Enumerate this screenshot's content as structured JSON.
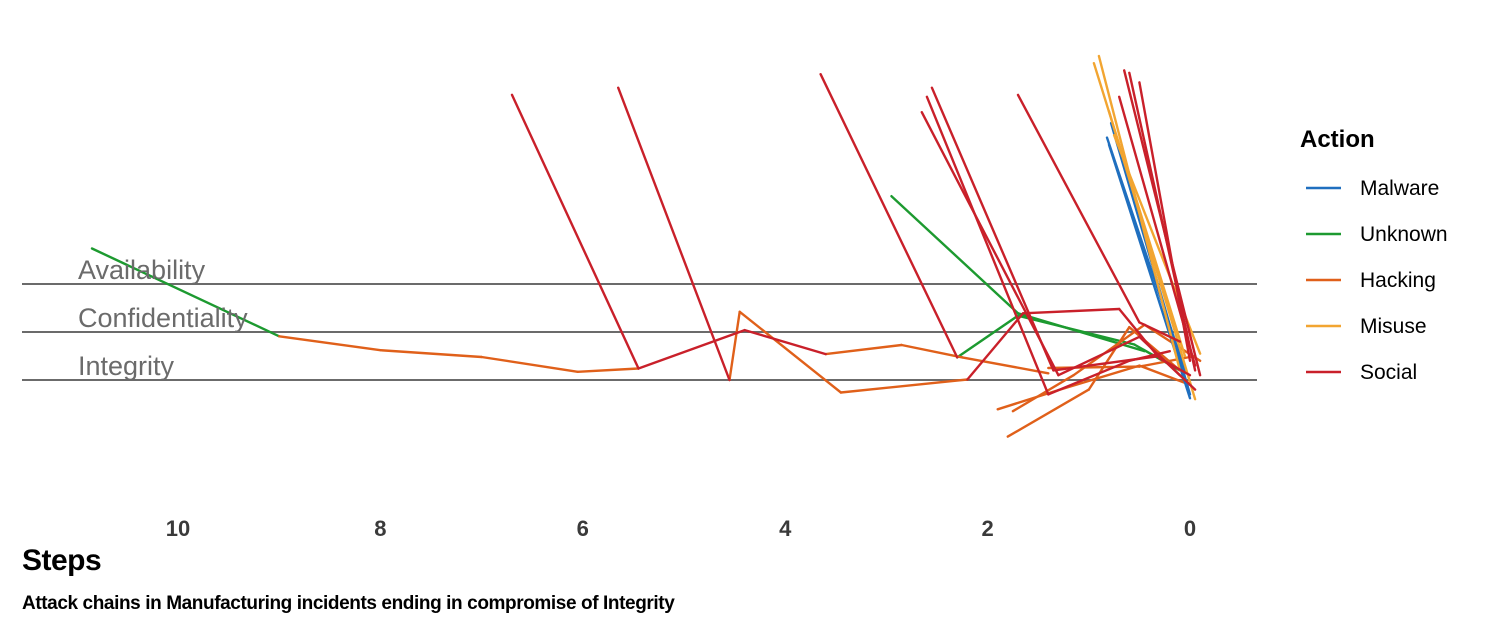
{
  "chart_data": {
    "type": "line",
    "xlabel": "Steps",
    "caption": "Attack chains in Manufacturing incidents ending in compromise of Integrity",
    "x_ticks": [
      10,
      8,
      6,
      4,
      2,
      0
    ],
    "xlim": [
      11.6,
      -0.65
    ],
    "x_reversed": true,
    "attributes": [
      "Availability",
      "Confidentiality",
      "Integrity"
    ],
    "legend": {
      "title": "Action",
      "position": "right",
      "entries": [
        {
          "name": "Malware",
          "color": "#1f6fbf"
        },
        {
          "name": "Unknown",
          "color": "#1d9a30"
        },
        {
          "name": "Hacking",
          "color": "#e0601a"
        },
        {
          "name": "Misuse",
          "color": "#f2a531"
        },
        {
          "name": "Social",
          "color": "#c9202a"
        }
      ]
    },
    "series": [
      {
        "points": [
          [
            10.85,
            2.74
          ],
          [
            9.0,
            0.91
          ],
          [
            8.0,
            0.62
          ],
          [
            7.0,
            0.48
          ],
          [
            6.05,
            0.17
          ],
          [
            5.45,
            0.24
          ]
        ],
        "actions": [
          "Unknown",
          "Unknown",
          "Hacking",
          "Hacking",
          "Hacking",
          "Hacking"
        ]
      },
      {
        "points": [
          [
            6.7,
            5.94
          ],
          [
            5.45,
            0.24
          ],
          [
            4.4,
            1.04
          ],
          [
            3.6,
            0.54
          ],
          [
            2.85,
            0.73
          ],
          [
            2.25,
            0.47
          ],
          [
            1.4,
            0.14
          ]
        ],
        "actions": [
          "Social",
          "Social",
          "Social",
          "Social",
          "Hacking",
          "Hacking",
          "Hacking"
        ]
      },
      {
        "points": [
          [
            5.65,
            6.09
          ],
          [
            4.55,
            0.0
          ],
          [
            4.45,
            1.42
          ],
          [
            3.45,
            -0.26
          ],
          [
            2.2,
            0.01
          ],
          [
            1.65,
            1.39
          ],
          [
            0.7,
            1.48
          ],
          [
            0.3,
            0.45
          ],
          [
            0.0,
            0.1
          ]
        ],
        "actions": [
          "Social",
          "Social",
          "Hacking",
          "Hacking",
          "Hacking",
          "Social",
          "Social",
          "Social",
          "Social"
        ]
      },
      {
        "points": [
          [
            3.65,
            6.37
          ],
          [
            2.3,
            0.47
          ],
          [
            1.7,
            1.34
          ],
          [
            0.55,
            0.74
          ],
          [
            0.1,
            0.2
          ]
        ],
        "actions": [
          "Social",
          "Social",
          "Unknown",
          "Unknown",
          "Unknown"
        ]
      },
      {
        "points": [
          [
            2.95,
            3.83
          ],
          [
            1.7,
            1.39
          ],
          [
            0.45,
            0.6
          ]
        ],
        "actions": [
          "Unknown",
          "Unknown",
          "Unknown"
        ]
      },
      {
        "points": [
          [
            2.55,
            6.09
          ],
          [
            1.35,
            0.2
          ],
          [
            0.3,
            0.5
          ],
          [
            -0.05,
            -0.2
          ]
        ],
        "actions": [
          "Social",
          "Social",
          "Social",
          "Social"
        ]
      },
      {
        "points": [
          [
            2.6,
            5.9
          ],
          [
            1.4,
            -0.3
          ],
          [
            0.6,
            0.4
          ],
          [
            0.2,
            0.6
          ]
        ],
        "actions": [
          "Social",
          "Social",
          "Social",
          "Social"
        ]
      },
      {
        "points": [
          [
            2.65,
            5.58
          ],
          [
            1.3,
            0.1
          ],
          [
            0.5,
            0.9
          ],
          [
            0.1,
            0.1
          ]
        ],
        "actions": [
          "Social",
          "Social",
          "Social",
          "Social"
        ]
      },
      {
        "points": [
          [
            1.7,
            5.94
          ],
          [
            0.5,
            1.2
          ],
          [
            0.1,
            0.8
          ]
        ],
        "actions": [
          "Social",
          "Social",
          "Social"
        ]
      },
      {
        "points": [
          [
            1.9,
            -0.61
          ],
          [
            1.3,
            -0.21
          ],
          [
            0.5,
            0.3
          ],
          [
            0.0,
            -0.1
          ]
        ],
        "actions": [
          "Hacking",
          "Hacking",
          "Hacking",
          "Hacking"
        ]
      },
      {
        "points": [
          [
            1.8,
            -1.18
          ],
          [
            1.0,
            -0.2
          ],
          [
            0.6,
            1.1
          ],
          [
            0.1,
            0.2
          ]
        ],
        "actions": [
          "Hacking",
          "Hacking",
          "Hacking",
          "Hacking"
        ]
      },
      {
        "points": [
          [
            1.75,
            -0.65
          ],
          [
            1.15,
            0.1
          ],
          [
            0.45,
            1.15
          ],
          [
            -0.1,
            0.4
          ]
        ],
        "actions": [
          "Hacking",
          "Hacking",
          "Hacking",
          "Hacking"
        ]
      },
      {
        "points": [
          [
            1.4,
            0.25
          ],
          [
            0.5,
            0.28
          ],
          [
            -0.05,
            0.5
          ]
        ],
        "actions": [
          "Hacking",
          "Hacking",
          "Hacking"
        ]
      },
      {
        "points": [
          [
            0.9,
            6.75
          ],
          [
            0.1,
            0.2
          ]
        ],
        "actions": [
          "Misuse",
          "Misuse"
        ]
      },
      {
        "points": [
          [
            0.95,
            6.6
          ],
          [
            0.05,
            0.5
          ]
        ],
        "actions": [
          "Misuse",
          "Misuse"
        ]
      },
      {
        "points": [
          [
            0.8,
            5.6
          ],
          [
            -0.05,
            -0.4
          ]
        ],
        "actions": [
          "Misuse",
          "Misuse"
        ]
      },
      {
        "points": [
          [
            0.75,
            5.1
          ],
          [
            -0.1,
            0.55
          ]
        ],
        "actions": [
          "Misuse",
          "Misuse"
        ]
      },
      {
        "points": [
          [
            0.78,
            5.35
          ],
          [
            0.0,
            -0.3
          ]
        ],
        "actions": [
          "Malware",
          "Malware"
        ]
      },
      {
        "points": [
          [
            0.82,
            5.05
          ],
          [
            0.05,
            0.2
          ]
        ],
        "actions": [
          "Malware",
          "Malware"
        ]
      },
      {
        "points": [
          [
            0.8,
            4.9
          ],
          [
            0.0,
            -0.38
          ]
        ],
        "actions": [
          "Malware",
          "Malware"
        ]
      },
      {
        "points": [
          [
            0.7,
            5.9
          ],
          [
            -0.05,
            0.3
          ]
        ],
        "actions": [
          "Social",
          "Social"
        ]
      },
      {
        "points": [
          [
            0.6,
            6.4
          ],
          [
            -0.05,
            0.2
          ]
        ],
        "actions": [
          "Social",
          "Social"
        ]
      },
      {
        "points": [
          [
            0.5,
            6.2
          ],
          [
            0.0,
            0.4
          ]
        ],
        "actions": [
          "Social",
          "Social"
        ]
      },
      {
        "points": [
          [
            0.65,
            6.45
          ],
          [
            -0.1,
            0.1
          ]
        ],
        "actions": [
          "Social",
          "Social"
        ]
      }
    ]
  }
}
